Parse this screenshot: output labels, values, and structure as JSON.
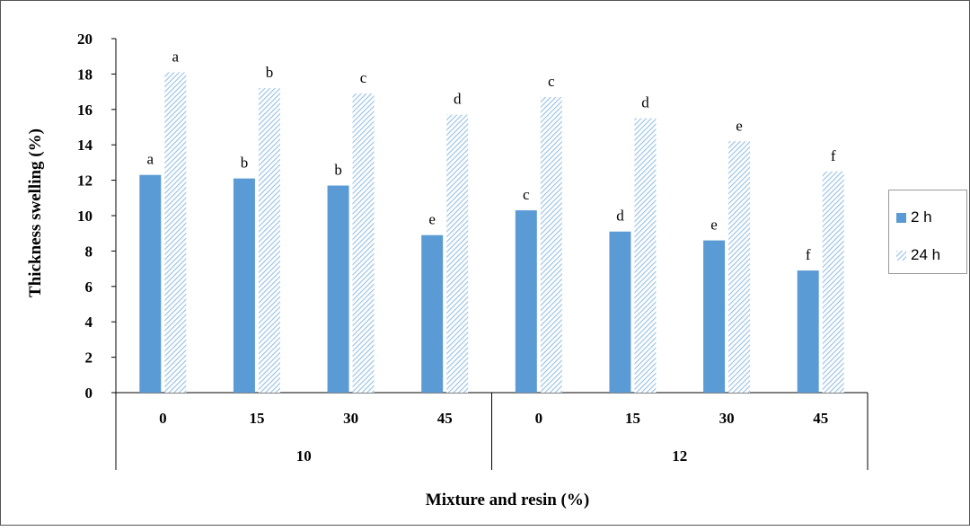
{
  "chart_data": {
    "type": "bar",
    "ylabel": "Thickness swelling (%)",
    "xlabel": "Mixture and resin (%)",
    "ylim": [
      0,
      20
    ],
    "yticks": [
      "0",
      "2",
      "4",
      "6",
      "8",
      "10",
      "12",
      "14",
      "16",
      "18",
      "20"
    ],
    "groups": [
      {
        "label": "10",
        "categories": [
          "0",
          "15",
          "30",
          "45"
        ]
      },
      {
        "label": "12",
        "categories": [
          "0",
          "15",
          "30",
          "45"
        ]
      }
    ],
    "categories": [
      "0",
      "15",
      "30",
      "45",
      "0",
      "15",
      "30",
      "45"
    ],
    "series": [
      {
        "name": "2 h",
        "color": "#5B9BD5",
        "pattern": "solid",
        "values": [
          12.3,
          12.1,
          11.7,
          8.9,
          10.3,
          9.1,
          8.6,
          6.9
        ],
        "letters": [
          "a",
          "b",
          "b",
          "e",
          "c",
          "d",
          "e",
          "f"
        ]
      },
      {
        "name": "24 h",
        "color": "#9DC3E6",
        "pattern": "hatched",
        "values": [
          18.1,
          17.2,
          16.9,
          15.7,
          16.7,
          15.5,
          14.2,
          12.5
        ],
        "letters": [
          "a",
          "b",
          "c",
          "d",
          "c",
          "d",
          "e",
          "f"
        ]
      }
    ],
    "grid": false,
    "legend_position": "right"
  }
}
